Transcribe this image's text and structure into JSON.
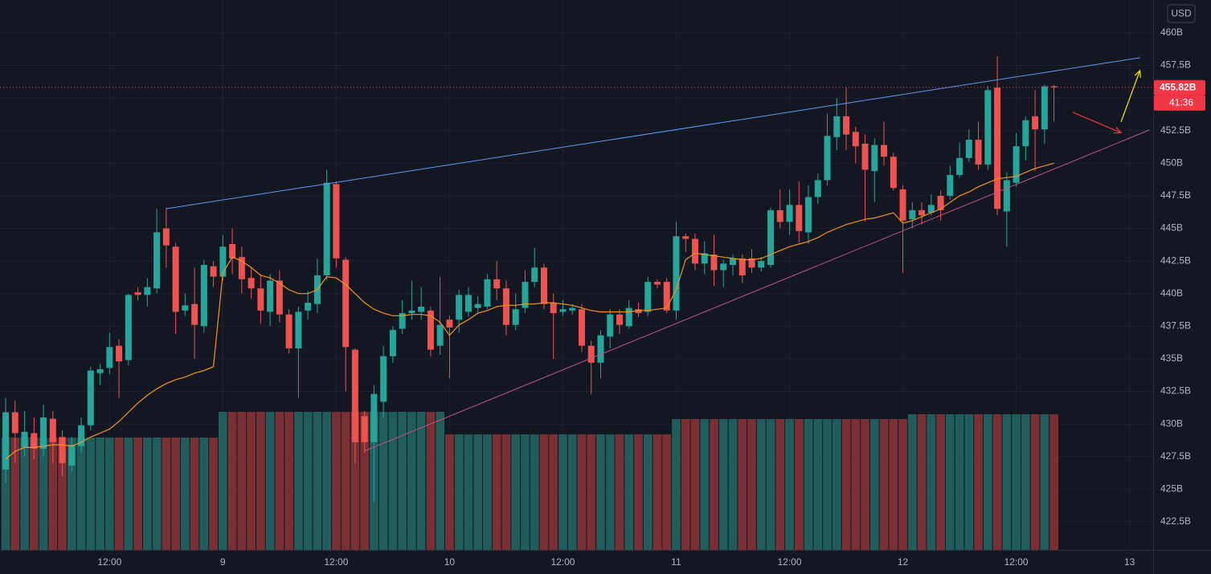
{
  "chart_data": {
    "type": "candlestick",
    "unit": "USD",
    "up_color": "#26a69a",
    "down_color": "#ef5350",
    "volume_up_color": "#1f5c5b",
    "volume_down_color": "#7a2f35",
    "grid": true,
    "xlim": [
      -0.6,
      121.5
    ],
    "ylim": [
      420.34,
      462.52
    ],
    "volume_lim": [
      0,
      400
    ],
    "xticks": [
      {
        "value": 11,
        "label": "12:00"
      },
      {
        "value": 23,
        "label": "9"
      },
      {
        "value": 35,
        "label": "12:00"
      },
      {
        "value": 47,
        "label": "10"
      },
      {
        "value": 59,
        "label": "12:00"
      },
      {
        "value": 71,
        "label": "11"
      },
      {
        "value": 83,
        "label": "12:00"
      },
      {
        "value": 95,
        "label": "12"
      },
      {
        "value": 107,
        "label": "12:00"
      },
      {
        "value": 119,
        "label": "13"
      }
    ],
    "yticks": [
      {
        "value": 460,
        "label": "460B"
      },
      {
        "value": 457.5,
        "label": "457.5B"
      },
      {
        "value": 455,
        "label": "455B"
      },
      {
        "value": 452.5,
        "label": "452.5B"
      },
      {
        "value": 450,
        "label": "450B"
      },
      {
        "value": 447.5,
        "label": "447.5B"
      },
      {
        "value": 445,
        "label": "445B"
      },
      {
        "value": 442.5,
        "label": "442.5B"
      },
      {
        "value": 440,
        "label": "440B"
      },
      {
        "value": 437.5,
        "label": "437.5B"
      },
      {
        "value": 435,
        "label": "435B"
      },
      {
        "value": 432.5,
        "label": "432.5B"
      },
      {
        "value": 430,
        "label": "430B"
      },
      {
        "value": 427.5,
        "label": "427.5B"
      },
      {
        "value": 425,
        "label": "425B"
      },
      {
        "value": 422.5,
        "label": "422.5B"
      }
    ],
    "open": [
      426.5,
      430.9,
      428.2,
      429.3,
      428.1,
      430.4,
      429,
      426.8,
      428.3,
      429.9,
      433.9,
      434.3,
      436,
      434.9,
      440.1,
      439.9,
      440.4,
      445,
      443.6,
      438.7,
      439.2,
      437.5,
      442.1,
      441.3,
      443.8,
      442.8,
      441.2,
      440.4,
      438.6,
      441,
      438.4,
      435.8,
      438.7,
      439.2,
      441.4,
      448.4,
      442.6,
      435.7,
      430.6,
      428.6,
      431.7,
      435.2,
      437.3,
      438.5,
      438.6,
      438.7,
      436,
      438,
      438,
      438.6,
      438.9,
      439,
      441.1,
      440.4,
      437.6,
      438.9,
      440.9,
      442,
      439.3,
      438.6,
      438.7,
      438.8,
      436,
      434.7,
      436.7,
      438.4,
      437.5,
      438.8,
      438.6,
      440.9,
      440.9,
      438.7,
      444.4,
      444.2,
      442.3,
      443,
      441.8,
      442.2,
      442.7,
      442.7,
      442,
      442.2,
      446.4,
      445.5,
      446.8,
      444.7,
      447.4,
      448.7,
      452,
      453.6,
      452.4,
      451.5,
      449.4,
      451.4,
      450.5,
      448,
      445.7,
      446.4,
      446.2,
      447.5,
      447.5,
      449.1,
      450.4,
      451.8,
      449.9,
      455.8,
      446.3,
      448.5,
      451.3,
      453.6,
      452.6,
      455.9
    ],
    "high": [
      432,
      431.8,
      431,
      430.5,
      431.5,
      431,
      429.5,
      429,
      430.5,
      434.4,
      434.6,
      437,
      436.5,
      440,
      440.5,
      441.2,
      446.5,
      446.6,
      443.9,
      440,
      442,
      442.6,
      442.5,
      444.5,
      445,
      443.6,
      442,
      441.5,
      441.5,
      441.8,
      438.8,
      439,
      440.2,
      442.7,
      449.5,
      448.6,
      442.8,
      435.8,
      431,
      433,
      436,
      437.5,
      439.5,
      441,
      440.5,
      439,
      441.3,
      438.3,
      440.3,
      440.5,
      439.8,
      441.5,
      442.5,
      441,
      440,
      441.8,
      443.5,
      442.3,
      440,
      439.5,
      439.2,
      439.2,
      436.4,
      437.2,
      438.8,
      438.8,
      439.5,
      439.3,
      441.3,
      441.1,
      441.2,
      445.5,
      444.6,
      444.6,
      444,
      444.5,
      442.6,
      443,
      443,
      443.4,
      442.8,
      446.6,
      448,
      448,
      448.6,
      448.3,
      449.2,
      453.8,
      455,
      455.8,
      452.8,
      452.2,
      451.9,
      453.2,
      450.8,
      448.3,
      447,
      447,
      447.6,
      447.9,
      449.8,
      451.6,
      452.6,
      453.2,
      455.9,
      458.2,
      449.3,
      452.3,
      453.6,
      455.6,
      456,
      456
    ],
    "low": [
      425.5,
      427,
      427.5,
      427.3,
      427.5,
      427,
      426,
      426.3,
      427.8,
      429.5,
      433,
      433.8,
      432,
      434.5,
      439.5,
      439,
      440,
      442,
      436.9,
      438.3,
      435,
      437,
      440.5,
      441,
      441.5,
      440,
      439.6,
      437.7,
      437.5,
      437.8,
      435.4,
      432,
      438,
      438.5,
      441,
      442,
      432.5,
      427,
      427.8,
      424,
      430.5,
      434.7,
      436.9,
      438,
      438,
      435.2,
      435.3,
      433.5,
      437,
      438.2,
      438.5,
      438.8,
      439.5,
      436.8,
      437.2,
      438.5,
      440.5,
      438.8,
      435,
      438.3,
      438.4,
      435.5,
      432.3,
      433.5,
      435.8,
      436.9,
      437.3,
      438.2,
      438.3,
      440.4,
      438.5,
      438,
      443.2,
      441.8,
      441.5,
      440.6,
      440.5,
      441.4,
      440.8,
      441.6,
      441.7,
      442,
      445,
      444.5,
      443.9,
      443.8,
      446.9,
      448.3,
      451,
      451,
      450,
      445.5,
      447,
      449.8,
      447.9,
      441.6,
      445,
      445.3,
      446,
      445.6,
      447.2,
      448.9,
      450.1,
      449.5,
      449.5,
      446,
      443.6,
      448.2,
      450.2,
      449.4,
      451.5,
      453.2
    ],
    "close": [
      430.9,
      429.3,
      429.4,
      428.1,
      430.5,
      428.6,
      427,
      428.4,
      429.9,
      434.1,
      434.2,
      435.9,
      434.8,
      439.9,
      439.9,
      440.5,
      444.7,
      443.7,
      438.6,
      439.1,
      437.6,
      442.2,
      441.3,
      443.6,
      442.7,
      441.1,
      440.4,
      438.7,
      441,
      438.4,
      435.8,
      438.6,
      439.3,
      441.4,
      448.5,
      442.7,
      435.9,
      428.6,
      428.6,
      432.3,
      435.2,
      437.2,
      438.5,
      438.7,
      439,
      435.7,
      437.6,
      437.4,
      439.9,
      439.9,
      439.2,
      441.1,
      440.4,
      437.6,
      438.8,
      440.9,
      442,
      439.2,
      438.5,
      438.8,
      438.9,
      436,
      434.7,
      436.8,
      438.4,
      437.6,
      438.9,
      438.5,
      440.9,
      440.7,
      438.7,
      444.4,
      444.2,
      442.3,
      443.1,
      441.8,
      442.3,
      442.7,
      441.4,
      442,
      442.5,
      446.4,
      445.5,
      446.8,
      444.8,
      447.4,
      448.7,
      452.1,
      453.6,
      452.2,
      451.3,
      449.5,
      451.4,
      450.5,
      448.1,
      445.6,
      446.4,
      446,
      446.8,
      446.4,
      449.1,
      450.4,
      451.8,
      449.9,
      455.6,
      446.5,
      448.7,
      451.3,
      453.3,
      452.6,
      455.9,
      455.82
    ],
    "volume": [
      140,
      140,
      140,
      140,
      140,
      140,
      140,
      140,
      140,
      140,
      140,
      140,
      140,
      140,
      140,
      140,
      140,
      140,
      140,
      140,
      140,
      140,
      140,
      172,
      172,
      172,
      172,
      172,
      172,
      172,
      172,
      172,
      172,
      172,
      172,
      172,
      172,
      172,
      172,
      172,
      172,
      172,
      172,
      172,
      172,
      172,
      172,
      144,
      144,
      144,
      144,
      144,
      144,
      144,
      144,
      144,
      144,
      144,
      144,
      144,
      144,
      144,
      144,
      144,
      144,
      144,
      144,
      144,
      144,
      144,
      144,
      163,
      163,
      163,
      163,
      163,
      163,
      163,
      163,
      163,
      163,
      163,
      163,
      163,
      163,
      163,
      163,
      163,
      163,
      163,
      163,
      163,
      163,
      163,
      163,
      163,
      169,
      169,
      169,
      169,
      169,
      169,
      169,
      169,
      169,
      169,
      169,
      169,
      169,
      169,
      169,
      169
    ],
    "ma": {
      "color": "#f7931a",
      "values": [
        427.3,
        427.9,
        428.2,
        428.2,
        428.3,
        428.4,
        428.4,
        428.3,
        428.6,
        429.0,
        429.3,
        429.6,
        430.2,
        430.9,
        431.6,
        432.2,
        432.7,
        433.1,
        433.4,
        433.6,
        433.9,
        434.1,
        434.4,
        441.6,
        442.8,
        442.5,
        442.0,
        441.4,
        441.2,
        440.8,
        440.3,
        440.0,
        440.0,
        440.3,
        441.3,
        441.2,
        440.7,
        440.0,
        439.3,
        438.8,
        438.5,
        438.3,
        438.3,
        438.4,
        438.4,
        438.3,
        437.8,
        436.8,
        437.6,
        438.0,
        438.5,
        438.7,
        439.0,
        439.1,
        439.1,
        439.2,
        439.2,
        439.3,
        439.3,
        439.2,
        439.1,
        438.9,
        438.7,
        438.6,
        438.6,
        438.6,
        438.6,
        438.7,
        438.7,
        438.8,
        438.9,
        440.3,
        442.6,
        443.1,
        443.0,
        442.9,
        442.8,
        442.7,
        442.6,
        442.6,
        442.7,
        443.0,
        443.3,
        443.6,
        443.8,
        444.0,
        444.3,
        444.7,
        445.0,
        445.3,
        445.5,
        445.7,
        445.8,
        446.0,
        446.2,
        445.4,
        445.6,
        445.9,
        446.2,
        446.5,
        447.0,
        447.5,
        447.8,
        448.2,
        448.5,
        448.8,
        448.9,
        449.0,
        449.3,
        449.6,
        449.8,
        450.0
      ]
    },
    "lines": [
      {
        "color": "#5b9cf6",
        "x": [
          17.0,
          120.1
        ],
        "y": [
          446.51,
          458.09
        ]
      },
      {
        "color": "#c2548a",
        "x": [
          37.96,
          121.1
        ],
        "y": [
          427.92,
          452.55
        ]
      }
    ],
    "arrows": [
      {
        "color": "#f23645",
        "x": [
          113.0,
          118.1
        ],
        "y": [
          453.9,
          452.34
        ]
      },
      {
        "color": "#f5e700",
        "x": [
          118.1,
          120.1
        ],
        "y": [
          453.17,
          457.11
        ]
      }
    ],
    "last_price": {
      "value": 455.82,
      "label": "455.82B"
    },
    "countdown": "41:36"
  }
}
